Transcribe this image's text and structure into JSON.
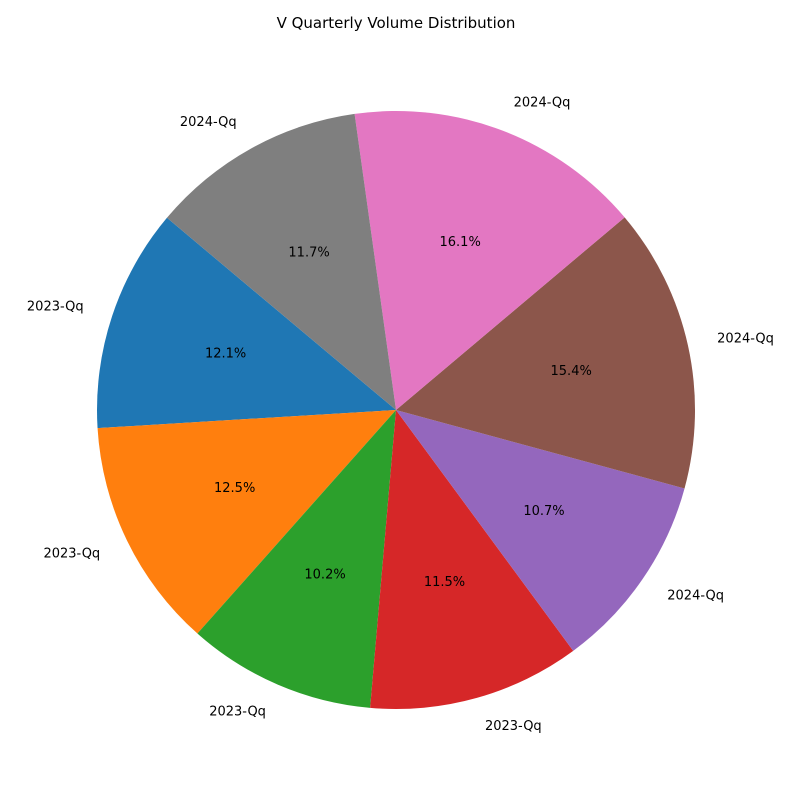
{
  "chart_data": {
    "type": "pie",
    "title": "V Quarterly Volume Distribution",
    "start_angle_deg": 140,
    "direction": "counterclockwise",
    "slices": [
      {
        "label": "2023-Qq",
        "value": 12.1,
        "pct_label": "12.1%",
        "color": "#1f77b4"
      },
      {
        "label": "2023-Qq",
        "value": 12.5,
        "pct_label": "12.5%",
        "color": "#ff7f0e"
      },
      {
        "label": "2023-Qq",
        "value": 10.2,
        "pct_label": "10.2%",
        "color": "#2ca02c"
      },
      {
        "label": "2023-Qq",
        "value": 11.5,
        "pct_label": "11.5%",
        "color": "#d62728"
      },
      {
        "label": "2024-Qq",
        "value": 10.7,
        "pct_label": "10.7%",
        "color": "#9467bd"
      },
      {
        "label": "2024-Qq",
        "value": 15.4,
        "pct_label": "15.4%",
        "color": "#8c564b"
      },
      {
        "label": "2024-Qq",
        "value": 16.1,
        "pct_label": "16.1%",
        "color": "#e377c2"
      },
      {
        "label": "2024-Qq",
        "value": 11.7,
        "pct_label": "11.7%",
        "color": "#7f7f7f"
      }
    ]
  }
}
